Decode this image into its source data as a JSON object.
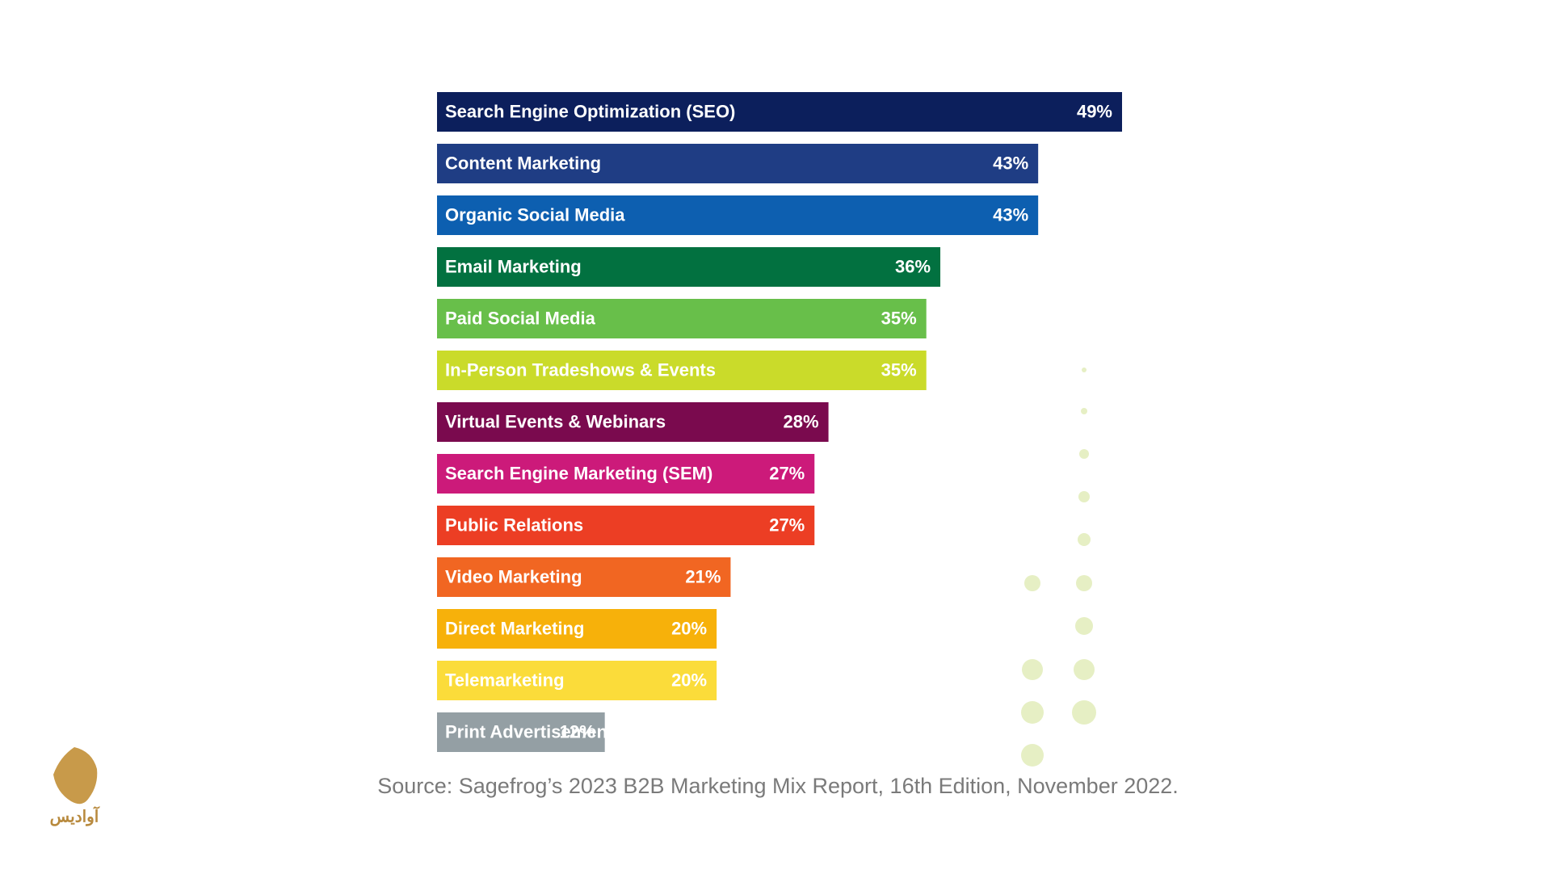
{
  "chart_data": {
    "type": "bar",
    "orientation": "horizontal",
    "categories": [
      "Search Engine Optimization (SEO)",
      "Content Marketing",
      "Organic Social Media",
      "Email Marketing",
      "Paid Social Media",
      "In-Person Tradeshows & Events",
      "Virtual Events & Webinars",
      "Search Engine Marketing (SEM)",
      "Public Relations",
      "Video Marketing",
      "Direct Marketing",
      "Telemarketing",
      "Print Advertisements"
    ],
    "values": [
      49,
      43,
      43,
      36,
      35,
      35,
      28,
      27,
      27,
      21,
      20,
      20,
      12
    ],
    "value_labels": [
      "49%",
      "43%",
      "43%",
      "36%",
      "35%",
      "35%",
      "28%",
      "27%",
      "27%",
      "21%",
      "20%",
      "20%",
      "12%"
    ],
    "colors": [
      "#0c1f5c",
      "#1f3d84",
      "#0d5fb0",
      "#027140",
      "#68bf4a",
      "#cadb2a",
      "#7a0a4e",
      "#cc1a7a",
      "#ec3e24",
      "#f16622",
      "#f7b10a",
      "#fbdc3a",
      "#949fa4"
    ],
    "source": "Source: Sagefrog’s 2023 B2B Marketing Mix Report, 16th Edition, November 2022."
  },
  "logo": {
    "text": "آوادیس"
  }
}
